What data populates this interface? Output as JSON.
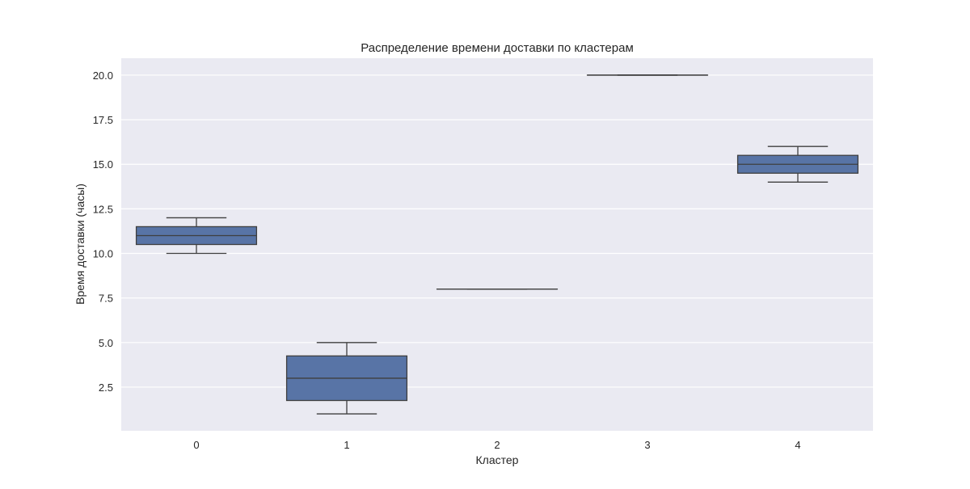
{
  "chart_data": {
    "type": "box",
    "title": "Распределение времени доставки по кластерам",
    "xlabel": "Кластер",
    "ylabel": "Время доставки (часы)",
    "categories": [
      "0",
      "1",
      "2",
      "3",
      "4"
    ],
    "boxes": [
      {
        "category": "0",
        "whisker_low": 10.0,
        "q1": 10.5,
        "median": 11.0,
        "q3": 11.5,
        "whisker_high": 12.0
      },
      {
        "category": "1",
        "whisker_low": 1.0,
        "q1": 1.75,
        "median": 3.0,
        "q3": 4.25,
        "whisker_high": 5.0
      },
      {
        "category": "2",
        "whisker_low": 8.0,
        "q1": 8.0,
        "median": 8.0,
        "q3": 8.0,
        "whisker_high": 8.0
      },
      {
        "category": "3",
        "whisker_low": 20.0,
        "q1": 20.0,
        "median": 20.0,
        "q3": 20.0,
        "whisker_high": 20.0
      },
      {
        "category": "4",
        "whisker_low": 14.0,
        "q1": 14.5,
        "median": 15.0,
        "q3": 15.5,
        "whisker_high": 16.0
      }
    ],
    "ylim": [
      0.05,
      20.95
    ],
    "yticks": [
      2.5,
      5.0,
      7.5,
      10.0,
      12.5,
      15.0,
      17.5,
      20.0
    ],
    "ytick_labels": [
      "2.5",
      "5.0",
      "7.5",
      "10.0",
      "12.5",
      "15.0",
      "17.5",
      "20.0"
    ],
    "grid": true,
    "colors": {
      "box_fill": "#5874a6",
      "box_edge": "#3f3f3f",
      "plot_background": "#eaeaf2",
      "grid": "#ffffff"
    }
  }
}
